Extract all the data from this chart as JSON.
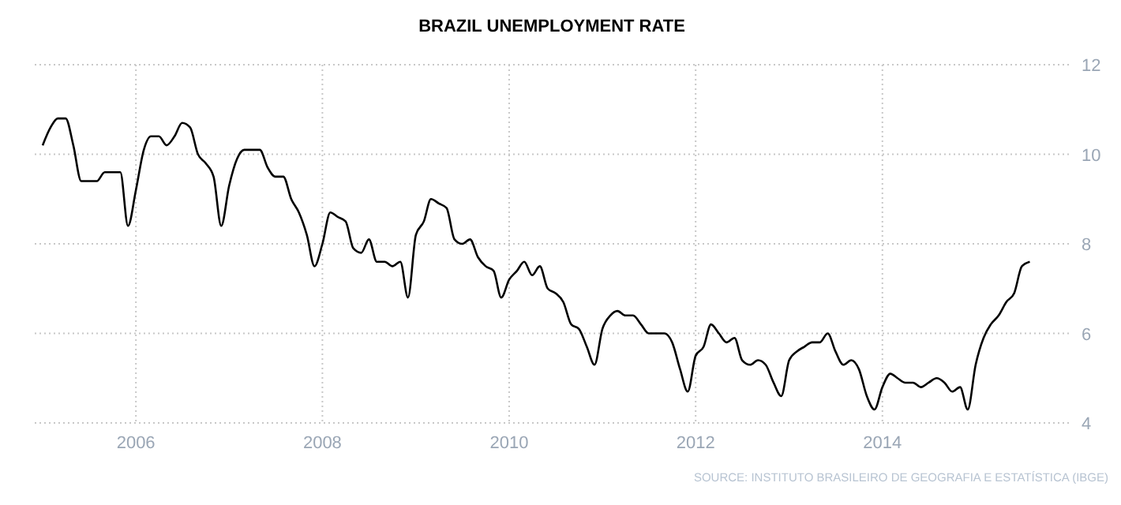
{
  "chart_data": {
    "type": "line",
    "title": "BRAZIL UNEMPLOYMENT RATE",
    "annotations": [
      "SOURCE: INSTITUTO BRASILEIRO DE GEOGRAFIA E ESTATÍSTICA (IBGE)"
    ],
    "x": [
      "2005-01",
      "2005-02",
      "2005-03",
      "2005-04",
      "2005-05",
      "2005-06",
      "2005-07",
      "2005-08",
      "2005-09",
      "2005-10",
      "2005-11",
      "2005-12",
      "2006-01",
      "2006-02",
      "2006-03",
      "2006-04",
      "2006-05",
      "2006-06",
      "2006-07",
      "2006-08",
      "2006-09",
      "2006-10",
      "2006-11",
      "2006-12",
      "2007-01",
      "2007-02",
      "2007-03",
      "2007-04",
      "2007-05",
      "2007-06",
      "2007-07",
      "2007-08",
      "2007-09",
      "2007-10",
      "2007-11",
      "2007-12",
      "2008-01",
      "2008-02",
      "2008-03",
      "2008-04",
      "2008-05",
      "2008-06",
      "2008-07",
      "2008-08",
      "2008-09",
      "2008-10",
      "2008-11",
      "2008-12",
      "2009-01",
      "2009-02",
      "2009-03",
      "2009-04",
      "2009-05",
      "2009-06",
      "2009-07",
      "2009-08",
      "2009-09",
      "2009-10",
      "2009-11",
      "2009-12",
      "2010-01",
      "2010-02",
      "2010-03",
      "2010-04",
      "2010-05",
      "2010-06",
      "2010-07",
      "2010-08",
      "2010-09",
      "2010-10",
      "2010-11",
      "2010-12",
      "2011-01",
      "2011-02",
      "2011-03",
      "2011-04",
      "2011-05",
      "2011-06",
      "2011-07",
      "2011-08",
      "2011-09",
      "2011-10",
      "2011-11",
      "2011-12",
      "2012-01",
      "2012-02",
      "2012-03",
      "2012-04",
      "2012-05",
      "2012-06",
      "2012-07",
      "2012-08",
      "2012-09",
      "2012-10",
      "2012-11",
      "2012-12",
      "2013-01",
      "2013-02",
      "2013-03",
      "2013-04",
      "2013-05",
      "2013-06",
      "2013-07",
      "2013-08",
      "2013-09",
      "2013-10",
      "2013-11",
      "2013-12",
      "2014-01",
      "2014-02",
      "2014-03",
      "2014-04",
      "2014-05",
      "2014-06",
      "2014-07",
      "2014-08",
      "2014-09",
      "2014-10",
      "2014-11",
      "2014-12",
      "2015-01",
      "2015-02",
      "2015-03",
      "2015-04",
      "2015-05",
      "2015-06",
      "2015-07",
      "2015-08"
    ],
    "series": [
      {
        "color": "#000000",
        "values": [
          10.2,
          10.6,
          10.8,
          10.8,
          10.2,
          9.4,
          9.4,
          9.4,
          9.6,
          9.6,
          9.6,
          8.4,
          9.2,
          10.1,
          10.4,
          10.4,
          10.2,
          10.4,
          10.7,
          10.6,
          10.0,
          9.8,
          9.5,
          8.4,
          9.3,
          9.9,
          10.1,
          10.1,
          10.1,
          9.7,
          9.5,
          9.5,
          9.0,
          8.7,
          8.2,
          7.5,
          8.0,
          8.7,
          8.6,
          8.5,
          7.9,
          7.8,
          8.1,
          7.6,
          7.6,
          7.5,
          7.6,
          6.8,
          8.2,
          8.5,
          9.0,
          8.9,
          8.8,
          8.1,
          8.0,
          8.1,
          7.7,
          7.5,
          7.4,
          6.8,
          7.2,
          7.4,
          7.6,
          7.3,
          7.5,
          7.0,
          6.9,
          6.7,
          6.2,
          6.1,
          5.7,
          5.3,
          6.1,
          6.4,
          6.5,
          6.4,
          6.4,
          6.2,
          6.0,
          6.0,
          6.0,
          5.8,
          5.2,
          4.7,
          5.5,
          5.7,
          6.2,
          6.0,
          5.8,
          5.9,
          5.4,
          5.3,
          5.4,
          5.3,
          4.9,
          4.6,
          5.4,
          5.6,
          5.7,
          5.8,
          5.8,
          6.0,
          5.6,
          5.3,
          5.4,
          5.2,
          4.6,
          4.3,
          4.8,
          5.1,
          5.0,
          4.9,
          4.9,
          4.8,
          4.9,
          5.0,
          4.9,
          4.7,
          4.8,
          4.3,
          5.3,
          5.9,
          6.2,
          6.4,
          6.7,
          6.9,
          7.5,
          7.6
        ]
      }
    ],
    "xlim": [
      "2004-12",
      "2016-01"
    ],
    "xticks": [
      {
        "value": "2006",
        "label": "2006"
      },
      {
        "value": "2008",
        "label": "2008"
      },
      {
        "value": "2010",
        "label": "2010"
      },
      {
        "value": "2012",
        "label": "2012"
      },
      {
        "value": "2014",
        "label": "2014"
      }
    ],
    "ylim": [
      4,
      12
    ],
    "yticks": [
      4,
      6,
      8,
      10,
      12
    ],
    "grid": true
  }
}
